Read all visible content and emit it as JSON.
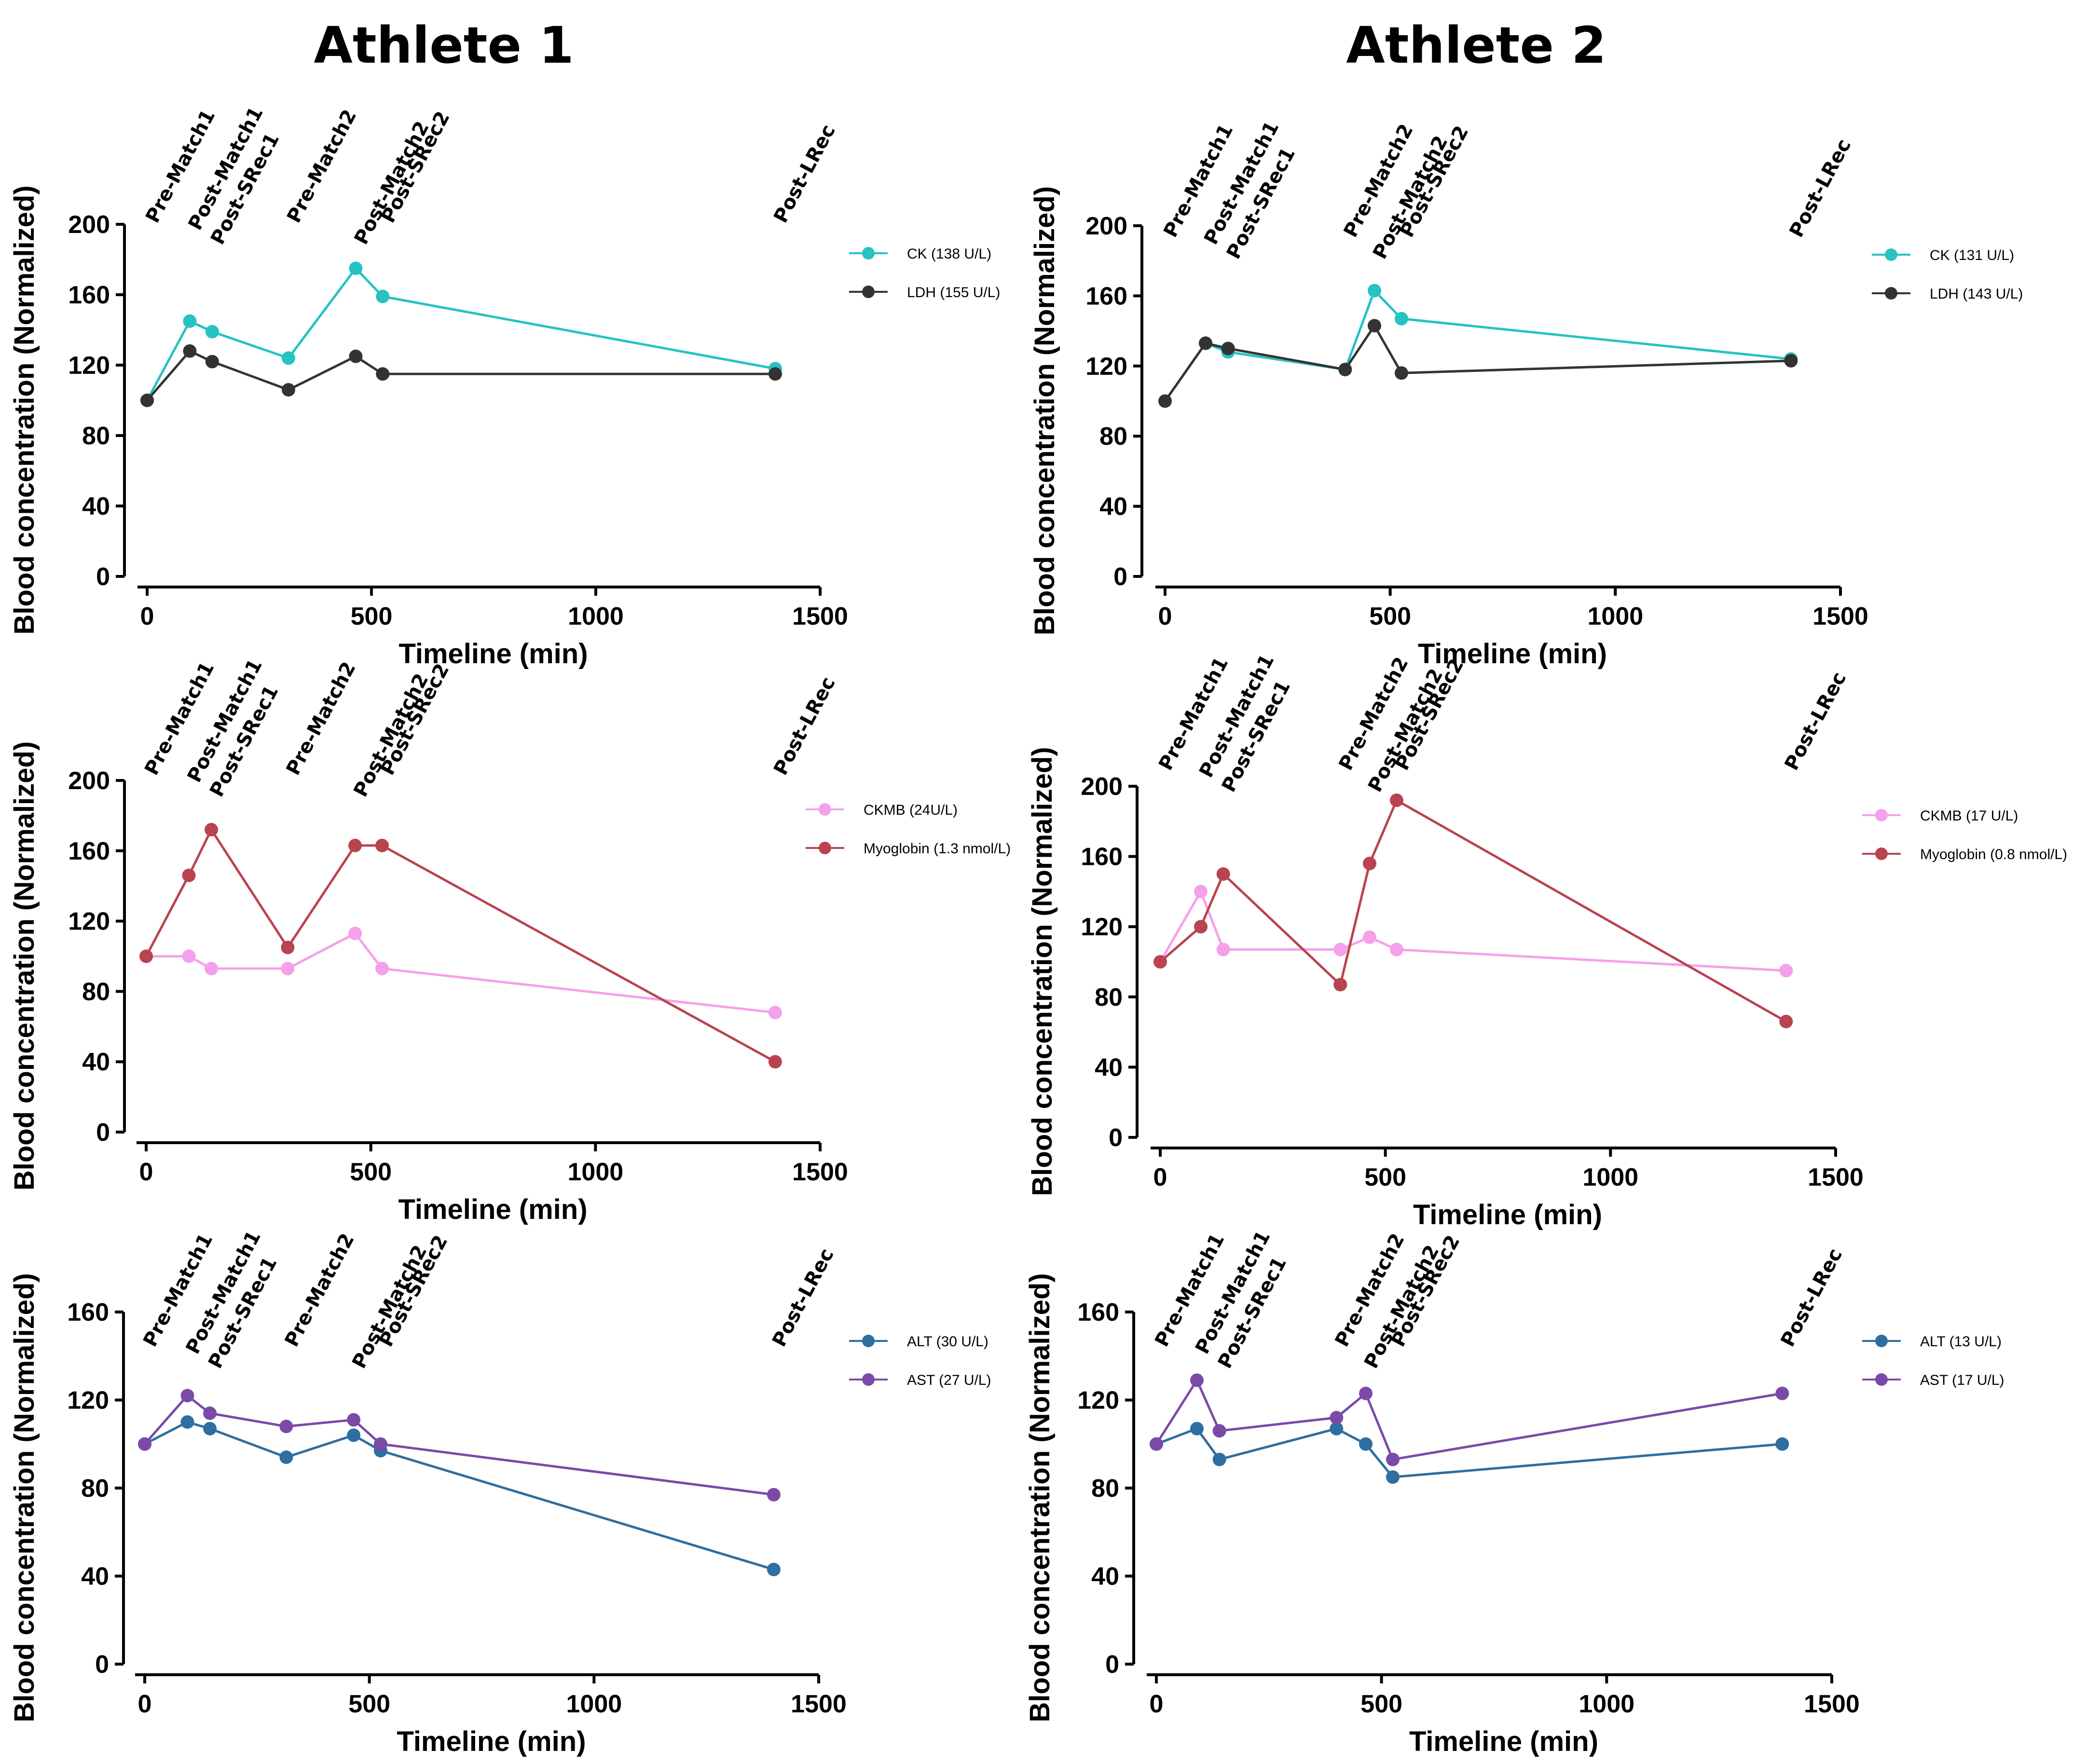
{
  "columns": [
    "Athlete 1",
    "Athlete 2"
  ],
  "events": [
    "Pre-Match1",
    "Post-Match1",
    "Post-SRec1",
    "Pre-Match2",
    "Post-Match2",
    "Post-SRec2",
    "Post-LRec"
  ],
  "chart_data": [
    {
      "type": "line",
      "athlete": "Athlete 1",
      "row": 0,
      "xlabel": "Timeline (min)",
      "ylabel": "Blood concentration (Normalized)",
      "xlim": [
        0,
        1500
      ],
      "xticks": [
        0,
        500,
        1000,
        1500
      ],
      "ylim": [
        0,
        200
      ],
      "yticks": [
        0,
        40,
        80,
        120,
        160,
        200
      ],
      "event_x": [
        0,
        95,
        145,
        315,
        465,
        525,
        1400
      ],
      "series": [
        {
          "name": "CK (138 U/L)",
          "color": "#27c2c2",
          "x": [
            0,
            95,
            145,
            315,
            465,
            525,
            1400
          ],
          "values": [
            100,
            145,
            139,
            124,
            175,
            159,
            118
          ]
        },
        {
          "name": "LDH (155 U/L)",
          "color": "#333333",
          "x": [
            0,
            95,
            145,
            315,
            465,
            525,
            1400
          ],
          "values": [
            100,
            128,
            122,
            106,
            125,
            115,
            115
          ]
        }
      ]
    },
    {
      "type": "line",
      "athlete": "Athlete 2",
      "row": 0,
      "xlabel": "Timeline (min)",
      "ylabel": "Blood concentration (Normalized)",
      "xlim": [
        0,
        1500
      ],
      "xticks": [
        0,
        500,
        1000,
        1500
      ],
      "ylim": [
        0,
        200
      ],
      "yticks": [
        0,
        40,
        80,
        120,
        160,
        200
      ],
      "event_x": [
        0,
        90,
        140,
        400,
        465,
        525,
        1390
      ],
      "series": [
        {
          "name": "CK (131 U/L)",
          "color": "#27c2c2",
          "x": [
            0,
            90,
            140,
            400,
            465,
            525,
            1390
          ],
          "values": [
            100,
            133,
            128,
            118,
            163,
            147,
            124
          ]
        },
        {
          "name": "LDH (143 U/L)",
          "color": "#333333",
          "x": [
            0,
            90,
            140,
            400,
            465,
            525,
            1390
          ],
          "values": [
            100,
            133,
            130,
            118,
            143,
            116,
            123
          ]
        }
      ]
    },
    {
      "type": "line",
      "athlete": "Athlete 1",
      "row": 1,
      "xlabel": "Timeline (min)",
      "ylabel": "Blood concentration (Normalized)",
      "xlim": [
        0,
        1500
      ],
      "xticks": [
        0,
        500,
        1000,
        1500
      ],
      "ylim": [
        0,
        200
      ],
      "yticks": [
        0,
        40,
        80,
        120,
        160,
        200
      ],
      "event_x": [
        0,
        95,
        145,
        315,
        465,
        525,
        1400
      ],
      "series": [
        {
          "name": "CKMB (24U/L)",
          "color": "#f5a0ea",
          "x": [
            0,
            95,
            145,
            315,
            465,
            525,
            1400
          ],
          "values": [
            100,
            100,
            93,
            93,
            113,
            93,
            68
          ]
        },
        {
          "name": "Myoglobin (1.3 nmol/L)",
          "color": "#b84450",
          "x": [
            0,
            95,
            145,
            315,
            465,
            525,
            1400
          ],
          "values": [
            100,
            146,
            172,
            105,
            163,
            163,
            40
          ]
        }
      ]
    },
    {
      "type": "line",
      "athlete": "Athlete 2",
      "row": 1,
      "xlabel": "Timeline (min)",
      "ylabel": "Blood concentration (Normalized)",
      "xlim": [
        0,
        1500
      ],
      "xticks": [
        0,
        500,
        1000,
        1500
      ],
      "ylim": [
        0,
        200
      ],
      "yticks": [
        0,
        40,
        80,
        120,
        160,
        200
      ],
      "event_x": [
        0,
        90,
        140,
        400,
        465,
        525,
        1390
      ],
      "series": [
        {
          "name": "CKMB (17 U/L)",
          "color": "#f5a0ea",
          "x": [
            0,
            90,
            140,
            400,
            465,
            525,
            1390
          ],
          "values": [
            100,
            140,
            107,
            107,
            114,
            107,
            95
          ]
        },
        {
          "name": "Myoglobin (0.8 nmol/L)",
          "color": "#b84450",
          "x": [
            0,
            90,
            140,
            400,
            465,
            525,
            1390
          ],
          "values": [
            100,
            120,
            150,
            87,
            156,
            192,
            66
          ]
        }
      ]
    },
    {
      "type": "line",
      "athlete": "Athlete 1",
      "row": 2,
      "xlabel": "Timeline (min)",
      "ylabel": "Blood concentration (Normalized)",
      "xlim": [
        0,
        1500
      ],
      "xticks": [
        0,
        500,
        1000,
        1500
      ],
      "ylim": [
        0,
        160
      ],
      "yticks": [
        0,
        40,
        80,
        120,
        160
      ],
      "event_x": [
        0,
        95,
        145,
        315,
        465,
        525,
        1400
      ],
      "series": [
        {
          "name": "ALT (30 U/L)",
          "color": "#2f6ea0",
          "x": [
            0,
            95,
            145,
            315,
            465,
            525,
            1400
          ],
          "values": [
            100,
            110,
            107,
            94,
            104,
            97,
            43
          ]
        },
        {
          "name": "AST (27 U/L)",
          "color": "#7b4aa8",
          "x": [
            0,
            95,
            145,
            315,
            465,
            525,
            1400
          ],
          "values": [
            100,
            122,
            114,
            108,
            111,
            100,
            77
          ]
        }
      ]
    },
    {
      "type": "line",
      "athlete": "Athlete 2",
      "row": 2,
      "xlabel": "Timeline (min)",
      "ylabel": "Blood concentration (Normalized)",
      "xlim": [
        0,
        1500
      ],
      "xticks": [
        0,
        500,
        1000,
        1500
      ],
      "ylim": [
        0,
        160
      ],
      "yticks": [
        0,
        40,
        80,
        120,
        160
      ],
      "event_x": [
        0,
        90,
        140,
        400,
        465,
        525,
        1390
      ],
      "series": [
        {
          "name": "ALT (13 U/L)",
          "color": "#2f6ea0",
          "x": [
            0,
            90,
            140,
            400,
            465,
            525,
            1390
          ],
          "values": [
            100,
            107,
            93,
            107,
            100,
            85,
            100
          ]
        },
        {
          "name": "AST (17 U/L)",
          "color": "#7b4aa8",
          "x": [
            0,
            90,
            140,
            400,
            465,
            525,
            1390
          ],
          "values": [
            100,
            129,
            106,
            112,
            123,
            93,
            123
          ]
        }
      ]
    }
  ]
}
